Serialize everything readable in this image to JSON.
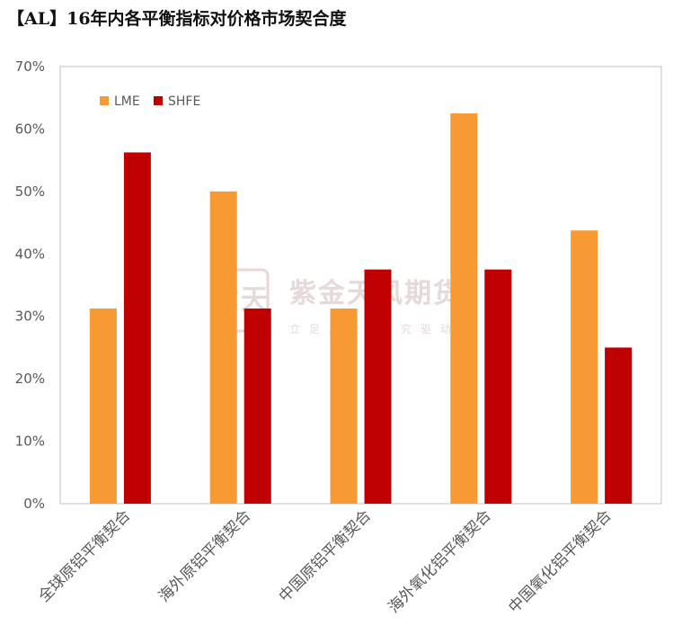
{
  "title": "【AL】16年内各平衡指标对价格市场契合度",
  "watermark": {
    "logo_text": "紫天",
    "name": "紫金天风期货",
    "slogan": "立足产业 研究驱动"
  },
  "chart_data": {
    "type": "bar",
    "categories": [
      "全球原铝平衡契合",
      "海外原铝平衡契合",
      "中国原铝平衡契合",
      "海外氧化铝平衡契合",
      "中国氧化铝平衡契合"
    ],
    "series": [
      {
        "name": "LME",
        "color": "#F89A33",
        "values": [
          0.3125,
          0.5,
          0.3125,
          0.625,
          0.4375
        ]
      },
      {
        "name": "SHFE",
        "color": "#C00000",
        "values": [
          0.5625,
          0.3125,
          0.375,
          0.375,
          0.25
        ]
      }
    ],
    "ylim": [
      0,
      0.7
    ],
    "yticks": [
      "0%",
      "10%",
      "20%",
      "30%",
      "40%",
      "50%",
      "60%",
      "70%"
    ],
    "xlabel": "",
    "ylabel": "",
    "grid": false,
    "legend_position": "top-left"
  }
}
